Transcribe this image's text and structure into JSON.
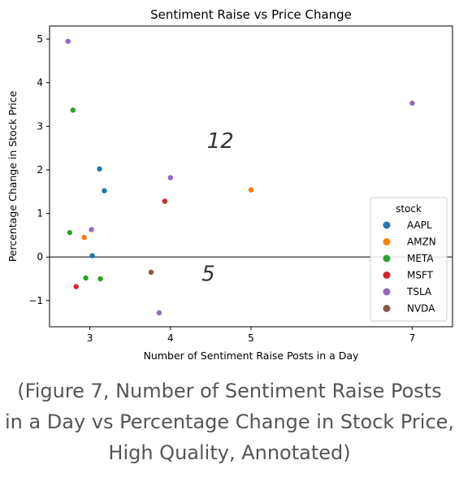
{
  "chart_data": {
    "type": "scatter",
    "title": "Sentiment Raise vs Price Change",
    "xlabel": "Number of Sentiment Raise Posts in a Day",
    "ylabel": "Percentage Change in Stock Price",
    "xlim": [
      2.5,
      7.5
    ],
    "ylim": [
      -1.6,
      5.3
    ],
    "xticks": [
      3,
      4,
      5,
      7
    ],
    "yticks": [
      -1,
      0,
      1,
      2,
      3,
      4,
      5
    ],
    "ytick_labels": [
      "−1",
      "0",
      "1",
      "2",
      "3",
      "4",
      "5"
    ],
    "reference_line": {
      "y": 0
    },
    "grid": false,
    "legend": {
      "title": "stock",
      "position": "lower-right"
    },
    "series": [
      {
        "name": "AAPL",
        "color": "#1f77b4",
        "points": [
          [
            3.12,
            2.02
          ],
          [
            3.18,
            1.52
          ],
          [
            3.03,
            0.03
          ]
        ]
      },
      {
        "name": "AMZN",
        "color": "#ff7f0e",
        "points": [
          [
            5.0,
            1.54
          ],
          [
            2.93,
            0.45
          ]
        ]
      },
      {
        "name": "META",
        "color": "#2ca02c",
        "points": [
          [
            2.79,
            3.37
          ],
          [
            2.75,
            0.56
          ],
          [
            2.95,
            -0.48
          ],
          [
            3.13,
            -0.5
          ]
        ]
      },
      {
        "name": "MSFT",
        "color": "#d62728",
        "points": [
          [
            3.93,
            1.28
          ],
          [
            2.83,
            -0.68
          ]
        ]
      },
      {
        "name": "TSLA",
        "color": "#9467bd",
        "points": [
          [
            2.73,
            4.95
          ],
          [
            7.0,
            3.53
          ],
          [
            4.0,
            1.82
          ],
          [
            3.02,
            0.63
          ],
          [
            3.86,
            -1.28
          ]
        ]
      },
      {
        "name": "NVDA",
        "color": "#8c564b",
        "points": [
          [
            3.76,
            -0.35
          ]
        ]
      }
    ],
    "annotations": [
      {
        "text": "12",
        "x": 4.62,
        "y": 2.5
      },
      {
        "text": "5",
        "x": 4.47,
        "y": -0.55
      }
    ]
  },
  "caption": {
    "line1": "(Figure 7, Number of Sentiment Raise Posts",
    "line2": "in a Day vs Percentage Change in Stock Price,",
    "line3": "High Quality, Annotated)"
  }
}
